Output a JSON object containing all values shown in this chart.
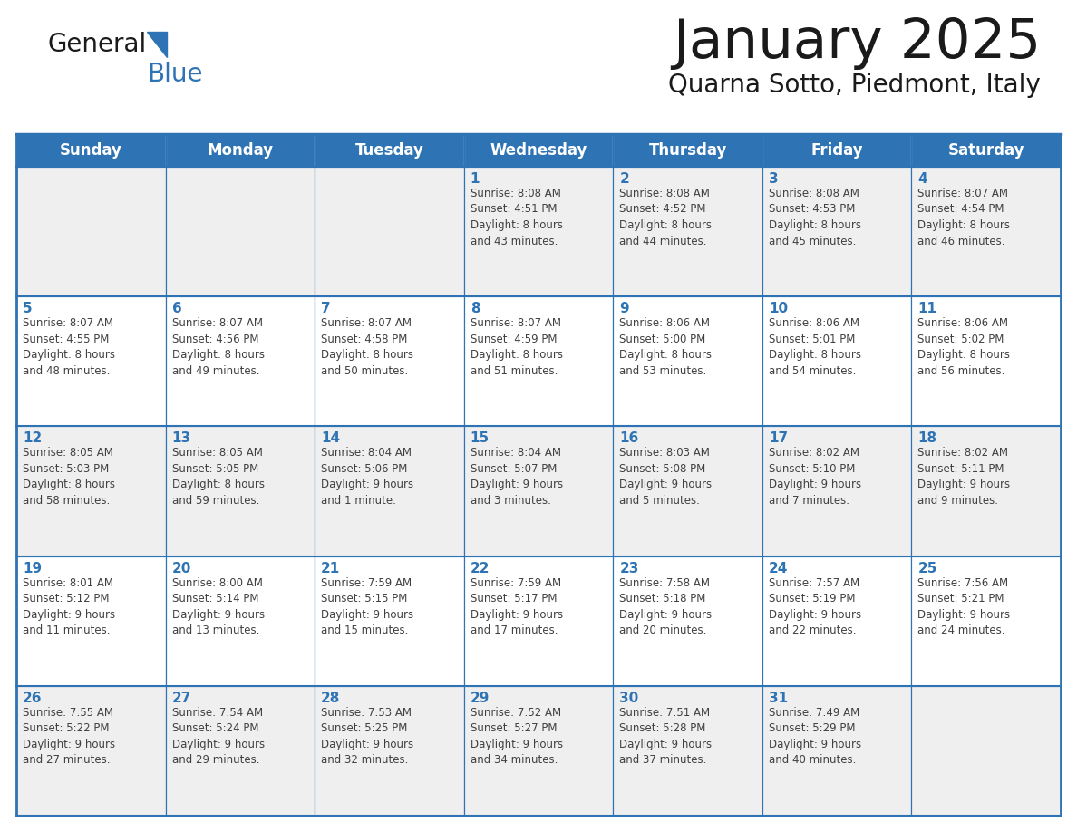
{
  "title": "January 2025",
  "subtitle": "Quarna Sotto, Piedmont, Italy",
  "days_of_week": [
    "Sunday",
    "Monday",
    "Tuesday",
    "Wednesday",
    "Thursday",
    "Friday",
    "Saturday"
  ],
  "header_bg": "#2E74B5",
  "header_text": "#FFFFFF",
  "cell_bg_light": "#EFEFEF",
  "cell_bg_white": "#FFFFFF",
  "border_color": "#2E74B5",
  "day_num_color": "#2E74B5",
  "text_color": "#404040",
  "logo_general_color": "#1a1a1a",
  "logo_blue_color": "#2E74B5",
  "title_color": "#1a1a1a",
  "calendar_data": [
    [
      {
        "day": null,
        "info": null
      },
      {
        "day": null,
        "info": null
      },
      {
        "day": null,
        "info": null
      },
      {
        "day": 1,
        "info": "Sunrise: 8:08 AM\nSunset: 4:51 PM\nDaylight: 8 hours\nand 43 minutes."
      },
      {
        "day": 2,
        "info": "Sunrise: 8:08 AM\nSunset: 4:52 PM\nDaylight: 8 hours\nand 44 minutes."
      },
      {
        "day": 3,
        "info": "Sunrise: 8:08 AM\nSunset: 4:53 PM\nDaylight: 8 hours\nand 45 minutes."
      },
      {
        "day": 4,
        "info": "Sunrise: 8:07 AM\nSunset: 4:54 PM\nDaylight: 8 hours\nand 46 minutes."
      }
    ],
    [
      {
        "day": 5,
        "info": "Sunrise: 8:07 AM\nSunset: 4:55 PM\nDaylight: 8 hours\nand 48 minutes."
      },
      {
        "day": 6,
        "info": "Sunrise: 8:07 AM\nSunset: 4:56 PM\nDaylight: 8 hours\nand 49 minutes."
      },
      {
        "day": 7,
        "info": "Sunrise: 8:07 AM\nSunset: 4:58 PM\nDaylight: 8 hours\nand 50 minutes."
      },
      {
        "day": 8,
        "info": "Sunrise: 8:07 AM\nSunset: 4:59 PM\nDaylight: 8 hours\nand 51 minutes."
      },
      {
        "day": 9,
        "info": "Sunrise: 8:06 AM\nSunset: 5:00 PM\nDaylight: 8 hours\nand 53 minutes."
      },
      {
        "day": 10,
        "info": "Sunrise: 8:06 AM\nSunset: 5:01 PM\nDaylight: 8 hours\nand 54 minutes."
      },
      {
        "day": 11,
        "info": "Sunrise: 8:06 AM\nSunset: 5:02 PM\nDaylight: 8 hours\nand 56 minutes."
      }
    ],
    [
      {
        "day": 12,
        "info": "Sunrise: 8:05 AM\nSunset: 5:03 PM\nDaylight: 8 hours\nand 58 minutes."
      },
      {
        "day": 13,
        "info": "Sunrise: 8:05 AM\nSunset: 5:05 PM\nDaylight: 8 hours\nand 59 minutes."
      },
      {
        "day": 14,
        "info": "Sunrise: 8:04 AM\nSunset: 5:06 PM\nDaylight: 9 hours\nand 1 minute."
      },
      {
        "day": 15,
        "info": "Sunrise: 8:04 AM\nSunset: 5:07 PM\nDaylight: 9 hours\nand 3 minutes."
      },
      {
        "day": 16,
        "info": "Sunrise: 8:03 AM\nSunset: 5:08 PM\nDaylight: 9 hours\nand 5 minutes."
      },
      {
        "day": 17,
        "info": "Sunrise: 8:02 AM\nSunset: 5:10 PM\nDaylight: 9 hours\nand 7 minutes."
      },
      {
        "day": 18,
        "info": "Sunrise: 8:02 AM\nSunset: 5:11 PM\nDaylight: 9 hours\nand 9 minutes."
      }
    ],
    [
      {
        "day": 19,
        "info": "Sunrise: 8:01 AM\nSunset: 5:12 PM\nDaylight: 9 hours\nand 11 minutes."
      },
      {
        "day": 20,
        "info": "Sunrise: 8:00 AM\nSunset: 5:14 PM\nDaylight: 9 hours\nand 13 minutes."
      },
      {
        "day": 21,
        "info": "Sunrise: 7:59 AM\nSunset: 5:15 PM\nDaylight: 9 hours\nand 15 minutes."
      },
      {
        "day": 22,
        "info": "Sunrise: 7:59 AM\nSunset: 5:17 PM\nDaylight: 9 hours\nand 17 minutes."
      },
      {
        "day": 23,
        "info": "Sunrise: 7:58 AM\nSunset: 5:18 PM\nDaylight: 9 hours\nand 20 minutes."
      },
      {
        "day": 24,
        "info": "Sunrise: 7:57 AM\nSunset: 5:19 PM\nDaylight: 9 hours\nand 22 minutes."
      },
      {
        "day": 25,
        "info": "Sunrise: 7:56 AM\nSunset: 5:21 PM\nDaylight: 9 hours\nand 24 minutes."
      }
    ],
    [
      {
        "day": 26,
        "info": "Sunrise: 7:55 AM\nSunset: 5:22 PM\nDaylight: 9 hours\nand 27 minutes."
      },
      {
        "day": 27,
        "info": "Sunrise: 7:54 AM\nSunset: 5:24 PM\nDaylight: 9 hours\nand 29 minutes."
      },
      {
        "day": 28,
        "info": "Sunrise: 7:53 AM\nSunset: 5:25 PM\nDaylight: 9 hours\nand 32 minutes."
      },
      {
        "day": 29,
        "info": "Sunrise: 7:52 AM\nSunset: 5:27 PM\nDaylight: 9 hours\nand 34 minutes."
      },
      {
        "day": 30,
        "info": "Sunrise: 7:51 AM\nSunset: 5:28 PM\nDaylight: 9 hours\nand 37 minutes."
      },
      {
        "day": 31,
        "info": "Sunrise: 7:49 AM\nSunset: 5:29 PM\nDaylight: 9 hours\nand 40 minutes."
      },
      {
        "day": null,
        "info": null
      }
    ]
  ]
}
